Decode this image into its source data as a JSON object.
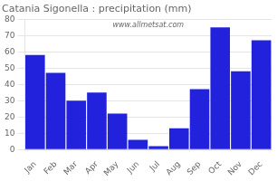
{
  "chart_data": {
    "type": "bar",
    "title": "Catania Sigonella : precipitation (mm)",
    "categories": [
      "Jan",
      "Feb",
      "Mar",
      "Apr",
      "May",
      "Jun",
      "Jul",
      "Aug",
      "Sep",
      "Oct",
      "Nov",
      "Dec"
    ],
    "values": [
      58,
      47,
      30,
      35,
      22,
      6,
      2,
      13,
      37,
      75,
      48,
      67
    ],
    "color": "#2222dd",
    "ylim": [
      0,
      80
    ],
    "yticks": [
      0,
      10,
      20,
      30,
      40,
      50,
      60,
      70,
      80
    ],
    "grid": true,
    "annotations": [
      "www.allmetsat.com"
    ]
  }
}
